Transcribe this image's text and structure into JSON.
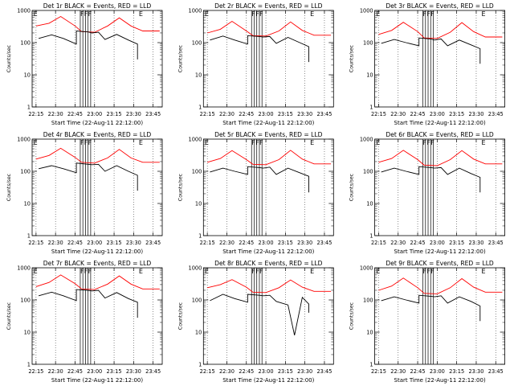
{
  "chart_data": [
    {
      "type": "line",
      "title": "Det 1r BLACK = Events, RED = LLD",
      "xlabel": "Start Time (22-Aug-11 22:12:00)",
      "ylabel": "Counts/sec",
      "yscale": "log",
      "ylim": [
        1,
        1000
      ],
      "xlim": [
        "22:12",
        "23:52"
      ],
      "x_ticks": [
        "22:15",
        "22:30",
        "22:45",
        "23:00",
        "23:15",
        "23:30",
        "23:45"
      ],
      "y_ticks": [
        "1",
        "10",
        "100",
        "1000"
      ],
      "markers": [
        {
          "time": "22:13",
          "label": "E"
        },
        {
          "time": "22:49",
          "label": "F"
        },
        {
          "time": "22:52",
          "label": "F"
        },
        {
          "time": "22:55",
          "label": "F"
        },
        {
          "time": "23:34",
          "label": "E"
        }
      ],
      "vlines": [
        "22:49",
        "22:51",
        "22:53",
        "22:55",
        "22:57"
      ],
      "series": [
        {
          "color": "#ff0000",
          "x": [
            "22:15",
            "22:25",
            "22:34",
            "22:45",
            "22:50",
            "23:00",
            "23:10",
            "23:19",
            "23:28",
            "23:37",
            "23:50"
          ],
          "y": [
            330,
            400,
            650,
            330,
            220,
            210,
            330,
            590,
            330,
            230,
            230
          ]
        },
        {
          "color": "#000000",
          "x": [
            "22:17",
            "22:27",
            "22:36",
            "22:46",
            "22:46",
            "22:55",
            "22:58",
            "23:03",
            "23:08",
            "23:17",
            "23:26",
            "23:33",
            "23:33"
          ],
          "y": [
            135,
            175,
            135,
            90,
            230,
            215,
            200,
            210,
            125,
            180,
            120,
            90,
            30
          ]
        }
      ]
    },
    {
      "type": "line",
      "title": "Det 2r BLACK = Events, RED = LLD",
      "xlabel": "Start Time (22-Aug-11 22:12:00)",
      "ylabel": "Counts/sec",
      "yscale": "log",
      "ylim": [
        1,
        1000
      ],
      "xlim": [
        "22:12",
        "23:52"
      ],
      "x_ticks": [
        "22:15",
        "22:30",
        "22:45",
        "23:00",
        "23:15",
        "23:30",
        "23:45"
      ],
      "y_ticks": [
        "1",
        "10",
        "100",
        "1000"
      ],
      "markers": [
        {
          "time": "22:13",
          "label": "E"
        },
        {
          "time": "22:49",
          "label": "F"
        },
        {
          "time": "22:52",
          "label": "F"
        },
        {
          "time": "22:55",
          "label": "F"
        },
        {
          "time": "23:34",
          "label": "E"
        }
      ],
      "vlines": [
        "22:49",
        "22:51",
        "22:53",
        "22:55",
        "22:57"
      ],
      "series": [
        {
          "color": "#ff0000",
          "x": [
            "22:15",
            "22:25",
            "22:34",
            "22:45",
            "22:50",
            "23:00",
            "23:10",
            "23:19",
            "23:28",
            "23:37",
            "23:50"
          ],
          "y": [
            200,
            260,
            460,
            230,
            165,
            160,
            230,
            440,
            240,
            170,
            170
          ]
        },
        {
          "color": "#000000",
          "x": [
            "22:17",
            "22:27",
            "22:36",
            "22:46",
            "22:46",
            "22:55",
            "22:58",
            "23:03",
            "23:08",
            "23:17",
            "23:26",
            "23:33",
            "23:33"
          ],
          "y": [
            120,
            160,
            120,
            90,
            165,
            155,
            150,
            155,
            95,
            145,
            100,
            75,
            25
          ]
        }
      ]
    },
    {
      "type": "line",
      "title": "Det 3r BLACK = Events, RED = LLD",
      "xlabel": "Start Time (22-Aug-11 22:12:00)",
      "ylabel": "Counts/sec",
      "yscale": "log",
      "ylim": [
        1,
        1000
      ],
      "xlim": [
        "22:12",
        "23:52"
      ],
      "x_ticks": [
        "22:15",
        "22:30",
        "22:45",
        "23:00",
        "23:15",
        "23:30",
        "23:45"
      ],
      "y_ticks": [
        "1",
        "10",
        "100",
        "1000"
      ],
      "markers": [
        {
          "time": "22:13",
          "label": "E"
        },
        {
          "time": "22:49",
          "label": "F"
        },
        {
          "time": "22:52",
          "label": "F"
        },
        {
          "time": "22:55",
          "label": "F"
        },
        {
          "time": "23:34",
          "label": "E"
        }
      ],
      "vlines": [
        "22:49",
        "22:51",
        "22:53",
        "22:55",
        "22:57"
      ],
      "series": [
        {
          "color": "#ff0000",
          "x": [
            "22:15",
            "22:25",
            "22:34",
            "22:45",
            "22:50",
            "23:00",
            "23:10",
            "23:19",
            "23:28",
            "23:37",
            "23:50"
          ],
          "y": [
            180,
            240,
            430,
            220,
            140,
            135,
            210,
            420,
            220,
            150,
            150
          ]
        },
        {
          "color": "#000000",
          "x": [
            "22:17",
            "22:27",
            "22:36",
            "22:46",
            "22:46",
            "22:55",
            "22:58",
            "23:03",
            "23:08",
            "23:17",
            "23:26",
            "23:33",
            "23:33"
          ],
          "y": [
            95,
            125,
            100,
            80,
            140,
            130,
            120,
            130,
            80,
            120,
            85,
            65,
            22
          ]
        }
      ]
    },
    {
      "type": "line",
      "title": "Det 4r BLACK = Events, RED = LLD",
      "xlabel": "Start Time (22-Aug-11 22:12:00)",
      "ylabel": "Counts/sec",
      "yscale": "log",
      "ylim": [
        1,
        1000
      ],
      "xlim": [
        "22:12",
        "23:52"
      ],
      "x_ticks": [
        "22:15",
        "22:30",
        "22:45",
        "23:00",
        "23:15",
        "23:30",
        "23:45"
      ],
      "y_ticks": [
        "1",
        "10",
        "100",
        "1000"
      ],
      "markers": [
        {
          "time": "22:13",
          "label": "E"
        },
        {
          "time": "22:49",
          "label": "F"
        },
        {
          "time": "22:52",
          "label": "F"
        },
        {
          "time": "22:55",
          "label": "F"
        },
        {
          "time": "23:34",
          "label": "E"
        }
      ],
      "vlines": [
        "22:49",
        "22:51",
        "22:53",
        "22:55",
        "22:57"
      ],
      "series": [
        {
          "color": "#ff0000",
          "x": [
            "22:15",
            "22:25",
            "22:34",
            "22:45",
            "22:50",
            "23:00",
            "23:10",
            "23:19",
            "23:28",
            "23:37",
            "23:50"
          ],
          "y": [
            240,
            310,
            520,
            270,
            190,
            180,
            260,
            480,
            260,
            190,
            190
          ]
        },
        {
          "color": "#000000",
          "x": [
            "22:17",
            "22:27",
            "22:36",
            "22:46",
            "22:46",
            "22:55",
            "22:58",
            "23:03",
            "23:08",
            "23:17",
            "23:26",
            "23:33",
            "23:33"
          ],
          "y": [
            120,
            150,
            120,
            90,
            180,
            165,
            160,
            165,
            100,
            150,
            100,
            75,
            25
          ]
        }
      ]
    },
    {
      "type": "line",
      "title": "Det 5r BLACK = Events, RED = LLD",
      "xlabel": "Start Time (22-Aug-11 22:12:00)",
      "ylabel": "Counts/sec",
      "yscale": "log",
      "ylim": [
        1,
        1000
      ],
      "xlim": [
        "22:12",
        "23:52"
      ],
      "x_ticks": [
        "22:15",
        "22:30",
        "22:45",
        "23:00",
        "23:15",
        "23:30",
        "23:45"
      ],
      "y_ticks": [
        "1",
        "10",
        "100",
        "1000"
      ],
      "markers": [
        {
          "time": "22:13",
          "label": "E"
        },
        {
          "time": "22:49",
          "label": "F"
        },
        {
          "time": "22:52",
          "label": "F"
        },
        {
          "time": "22:55",
          "label": "F"
        },
        {
          "time": "23:34",
          "label": "E"
        }
      ],
      "vlines": [
        "22:49",
        "22:51",
        "22:53",
        "22:55",
        "22:57"
      ],
      "series": [
        {
          "color": "#ff0000",
          "x": [
            "22:15",
            "22:25",
            "22:34",
            "22:45",
            "22:50",
            "23:00",
            "23:10",
            "23:19",
            "23:28",
            "23:37",
            "23:50"
          ],
          "y": [
            190,
            250,
            440,
            230,
            165,
            160,
            230,
            450,
            240,
            170,
            170
          ]
        },
        {
          "color": "#000000",
          "x": [
            "22:17",
            "22:27",
            "22:36",
            "22:46",
            "22:46",
            "22:55",
            "22:58",
            "23:03",
            "23:08",
            "23:17",
            "23:26",
            "23:33",
            "23:33"
          ],
          "y": [
            95,
            125,
            100,
            80,
            140,
            130,
            125,
            135,
            80,
            125,
            90,
            70,
            22
          ]
        }
      ]
    },
    {
      "type": "line",
      "title": "Det 6r BLACK = Events, RED = LLD",
      "xlabel": "Start Time (22-Aug-11 22:12:00)",
      "ylabel": "Counts/sec",
      "yscale": "log",
      "ylim": [
        1,
        1000
      ],
      "xlim": [
        "22:12",
        "23:52"
      ],
      "x_ticks": [
        "22:15",
        "22:30",
        "22:45",
        "23:00",
        "23:15",
        "23:30",
        "23:45"
      ],
      "y_ticks": [
        "1",
        "10",
        "100",
        "1000"
      ],
      "markers": [
        {
          "time": "22:13",
          "label": "E"
        },
        {
          "time": "22:49",
          "label": "F"
        },
        {
          "time": "22:52",
          "label": "F"
        },
        {
          "time": "22:55",
          "label": "F"
        },
        {
          "time": "23:34",
          "label": "E"
        }
      ],
      "vlines": [
        "22:49",
        "22:51",
        "22:53",
        "22:55",
        "22:57"
      ],
      "series": [
        {
          "color": "#ff0000",
          "x": [
            "22:15",
            "22:25",
            "22:34",
            "22:45",
            "22:50",
            "23:00",
            "23:10",
            "23:19",
            "23:28",
            "23:37",
            "23:50"
          ],
          "y": [
            190,
            250,
            450,
            230,
            155,
            150,
            230,
            440,
            240,
            170,
            170
          ]
        },
        {
          "color": "#000000",
          "x": [
            "22:17",
            "22:27",
            "22:36",
            "22:46",
            "22:46",
            "22:55",
            "22:58",
            "23:03",
            "23:08",
            "23:17",
            "23:26",
            "23:33",
            "23:33"
          ],
          "y": [
            95,
            125,
            100,
            80,
            140,
            130,
            125,
            130,
            80,
            125,
            85,
            65,
            22
          ]
        }
      ]
    },
    {
      "type": "line",
      "title": "Det 7r BLACK = Events, RED = LLD",
      "xlabel": "Start Time (22-Aug-11 22:12:00)",
      "ylabel": "Counts/sec",
      "yscale": "log",
      "ylim": [
        1,
        1000
      ],
      "xlim": [
        "22:12",
        "23:52"
      ],
      "x_ticks": [
        "22:15",
        "22:30",
        "22:45",
        "23:00",
        "23:15",
        "23:30",
        "23:45"
      ],
      "y_ticks": [
        "1",
        "10",
        "100",
        "1000"
      ],
      "markers": [
        {
          "time": "22:13",
          "label": "E"
        },
        {
          "time": "22:49",
          "label": "F"
        },
        {
          "time": "22:52",
          "label": "F"
        },
        {
          "time": "22:55",
          "label": "F"
        },
        {
          "time": "23:34",
          "label": "E"
        }
      ],
      "vlines": [
        "22:49",
        "22:51",
        "22:53",
        "22:55",
        "22:57"
      ],
      "series": [
        {
          "color": "#ff0000",
          "x": [
            "22:15",
            "22:25",
            "22:34",
            "22:45",
            "22:50",
            "23:00",
            "23:10",
            "23:19",
            "23:28",
            "23:37",
            "23:50"
          ],
          "y": [
            260,
            350,
            600,
            320,
            220,
            210,
            310,
            560,
            310,
            220,
            220
          ]
        },
        {
          "color": "#000000",
          "x": [
            "22:17",
            "22:27",
            "22:36",
            "22:46",
            "22:46",
            "22:55",
            "22:58",
            "23:03",
            "23:08",
            "23:17",
            "23:26",
            "23:33",
            "23:33"
          ],
          "y": [
            135,
            175,
            135,
            95,
            210,
            200,
            190,
            200,
            115,
            170,
            110,
            85,
            28
          ]
        }
      ]
    },
    {
      "type": "line",
      "title": "Det 8r BLACK = Events, RED = LLD",
      "xlabel": "Start Time (22-Aug-11 22:12:00)",
      "ylabel": "Counts/sec",
      "yscale": "log",
      "ylim": [
        1,
        1000
      ],
      "xlim": [
        "22:12",
        "23:52"
      ],
      "x_ticks": [
        "22:15",
        "22:30",
        "22:45",
        "23:00",
        "23:15",
        "23:30",
        "23:45"
      ],
      "y_ticks": [
        "1",
        "10",
        "100",
        "1000"
      ],
      "markers": [
        {
          "time": "22:13",
          "label": "E"
        },
        {
          "time": "22:49",
          "label": "F"
        },
        {
          "time": "22:52",
          "label": "F"
        },
        {
          "time": "22:55",
          "label": "F"
        },
        {
          "time": "23:34",
          "label": "E"
        }
      ],
      "vlines": [
        "22:49",
        "22:51",
        "22:53",
        "22:55",
        "22:57"
      ],
      "series": [
        {
          "color": "#ff0000",
          "x": [
            "22:15",
            "22:25",
            "22:34",
            "22:45",
            "22:50",
            "23:00",
            "23:10",
            "23:19",
            "23:28",
            "23:37",
            "23:50"
          ],
          "y": [
            240,
            300,
            430,
            250,
            175,
            170,
            240,
            420,
            250,
            185,
            185
          ]
        },
        {
          "color": "#000000",
          "x": [
            "22:17",
            "22:27",
            "22:36",
            "22:46",
            "22:46",
            "22:55",
            "22:58",
            "23:03",
            "23:08",
            "23:17",
            "23:22",
            "23:28",
            "23:33",
            "23:33"
          ],
          "y": [
            95,
            150,
            110,
            85,
            150,
            140,
            135,
            140,
            90,
            70,
            8,
            120,
            75,
            40
          ]
        }
      ]
    },
    {
      "type": "line",
      "title": "Det 9r BLACK = Events, RED = LLD",
      "xlabel": "Start Time (22-Aug-11 22:12:00)",
      "ylabel": "Counts/sec",
      "yscale": "log",
      "ylim": [
        1,
        1000
      ],
      "xlim": [
        "22:12",
        "23:52"
      ],
      "x_ticks": [
        "22:15",
        "22:30",
        "22:45",
        "23:00",
        "23:15",
        "23:30",
        "23:45"
      ],
      "y_ticks": [
        "1",
        "10",
        "100",
        "1000"
      ],
      "markers": [
        {
          "time": "22:13",
          "label": "E"
        },
        {
          "time": "22:49",
          "label": "F"
        },
        {
          "time": "22:52",
          "label": "F"
        },
        {
          "time": "22:55",
          "label": "F"
        },
        {
          "time": "23:34",
          "label": "E"
        }
      ],
      "vlines": [
        "22:49",
        "22:51",
        "22:53",
        "22:55",
        "22:57"
      ],
      "series": [
        {
          "color": "#ff0000",
          "x": [
            "22:15",
            "22:25",
            "22:34",
            "22:45",
            "22:50",
            "23:00",
            "23:10",
            "23:19",
            "23:28",
            "23:37",
            "23:50"
          ],
          "y": [
            200,
            270,
            480,
            240,
            160,
            155,
            240,
            460,
            250,
            175,
            175
          ]
        },
        {
          "color": "#000000",
          "x": [
            "22:17",
            "22:27",
            "22:36",
            "22:46",
            "22:46",
            "22:55",
            "22:58",
            "23:03",
            "23:08",
            "23:17",
            "23:26",
            "23:33",
            "23:33"
          ],
          "y": [
            95,
            125,
            100,
            80,
            140,
            130,
            125,
            135,
            80,
            125,
            90,
            65,
            22
          ]
        }
      ]
    }
  ]
}
